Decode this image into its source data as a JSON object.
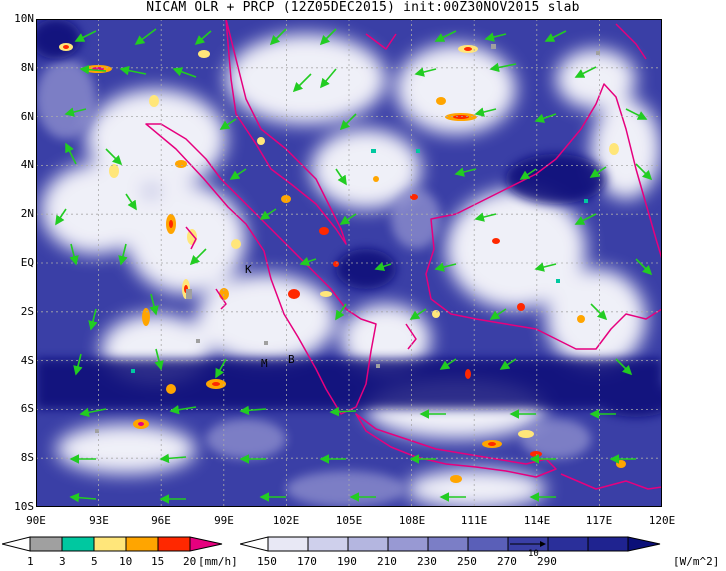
{
  "title": "NICAM OLR + PRCP (12Z05DEC2015) init:00Z30NOV2015 slab",
  "map": {
    "lat_labels": [
      "10N",
      "8N",
      "6N",
      "4N",
      "2N",
      "EQ",
      "2S",
      "4S",
      "6S",
      "8S",
      "10S"
    ],
    "lon_labels": [
      "90E",
      "93E",
      "96E",
      "99E",
      "102E",
      "105E",
      "108E",
      "111E",
      "114E",
      "117E",
      "120E"
    ],
    "place_labels": [
      {
        "text": "K",
        "lon": 100.6,
        "lat": -0.2
      },
      {
        "text": "M",
        "lon": 100.4,
        "lat": -4.1
      },
      {
        "text": "B",
        "lon": 101.3,
        "lat": -3.9
      }
    ]
  },
  "precip_bar": {
    "ticks": [
      "1",
      "3",
      "5",
      "10",
      "15",
      "20"
    ],
    "units": "[mm/h]",
    "colors": [
      "#a0a0a0",
      "#00c8a0",
      "#ffe67a",
      "#ffa500",
      "#ff2800",
      "#e6007e"
    ]
  },
  "olr_bar": {
    "ticks": [
      "150",
      "170",
      "190",
      "210",
      "230",
      "250",
      "270",
      "290"
    ],
    "units": "[W/m^2]",
    "colors": [
      "#ffffff",
      "#e8e8f5",
      "#cfd0ec",
      "#b4b6e0",
      "#9899d3",
      "#7b7ec6",
      "#5a5fb8",
      "#3a3fa6",
      "#1f2390",
      "#0b0f78"
    ],
    "vector_ref": "10"
  }
}
